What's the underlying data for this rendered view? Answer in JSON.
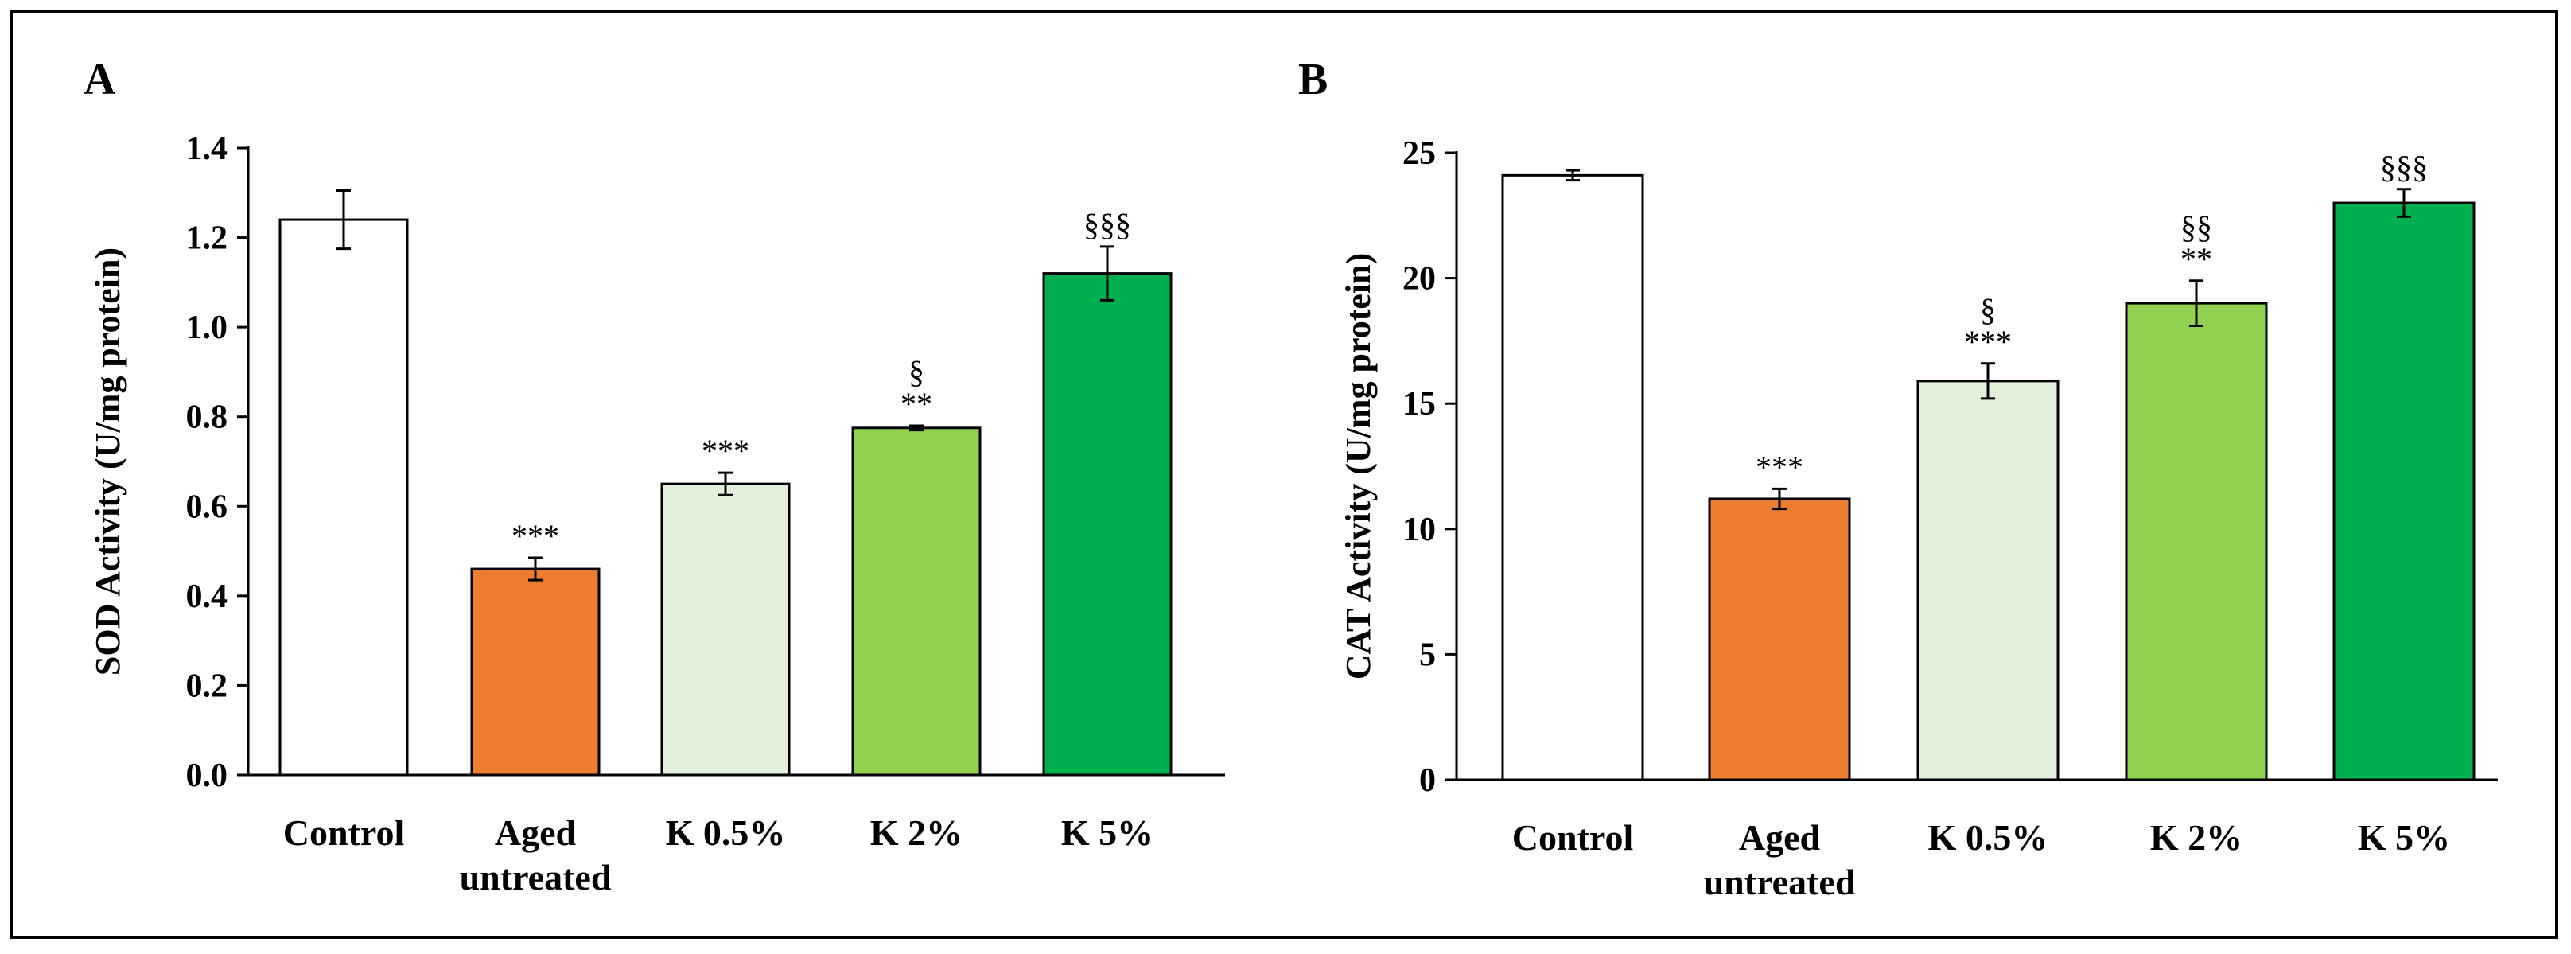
{
  "figure": {
    "border_color": "#000000"
  },
  "colors": {
    "control": "#ffffff",
    "aged": "#ed7d31",
    "k05": "#e2efda",
    "k2": "#92d050",
    "k5": "#00b050",
    "stroke": "#000000"
  },
  "chart_data": [
    {
      "panel": "A",
      "type": "bar",
      "title": "",
      "xlabel": "",
      "ylabel": "SOD Activity (U/mg protein)",
      "ylim": [
        0,
        1.4
      ],
      "yticks": [
        "0.0",
        "0.2",
        "0.4",
        "0.6",
        "0.8",
        "1.0",
        "1.2",
        "1.4"
      ],
      "ytick_values": [
        0,
        0.2,
        0.4,
        0.6,
        0.8,
        1.0,
        1.2,
        1.4
      ],
      "categories": [
        [
          "Control"
        ],
        [
          "Aged",
          "untreated"
        ],
        [
          "K 0.5%"
        ],
        [
          "K 2%"
        ],
        [
          "K 5%"
        ]
      ],
      "values": [
        1.24,
        0.46,
        0.65,
        0.775,
        1.12
      ],
      "errors": [
        0.065,
        0.025,
        0.025,
        0.005,
        0.06
      ],
      "fill_keys": [
        "control",
        "aged",
        "k05",
        "k2",
        "k5"
      ],
      "annotations": [
        [],
        [
          "***"
        ],
        [
          "***"
        ],
        [
          "§",
          "**"
        ],
        [
          "§§§"
        ]
      ]
    },
    {
      "panel": "B",
      "type": "bar",
      "title": "",
      "xlabel": "",
      "ylabel": "CAT Activity (U/mg protein)",
      "ylim": [
        0,
        25
      ],
      "yticks": [
        "0",
        "5",
        "10",
        "15",
        "20",
        "25"
      ],
      "ytick_values": [
        0,
        5,
        10,
        15,
        20,
        25
      ],
      "categories": [
        [
          "Control"
        ],
        [
          "Aged",
          "untreated"
        ],
        [
          "K 0.5%"
        ],
        [
          "K 2%"
        ],
        [
          "K 5%"
        ]
      ],
      "values": [
        24.1,
        11.2,
        15.9,
        19.0,
        23.0
      ],
      "errors": [
        0.2,
        0.4,
        0.7,
        0.9,
        0.55
      ],
      "fill_keys": [
        "control",
        "aged",
        "k05",
        "k2",
        "k5"
      ],
      "annotations": [
        [],
        [
          "***"
        ],
        [
          "§",
          "***"
        ],
        [
          "§§",
          "**"
        ],
        [
          "§§§"
        ]
      ]
    }
  ]
}
